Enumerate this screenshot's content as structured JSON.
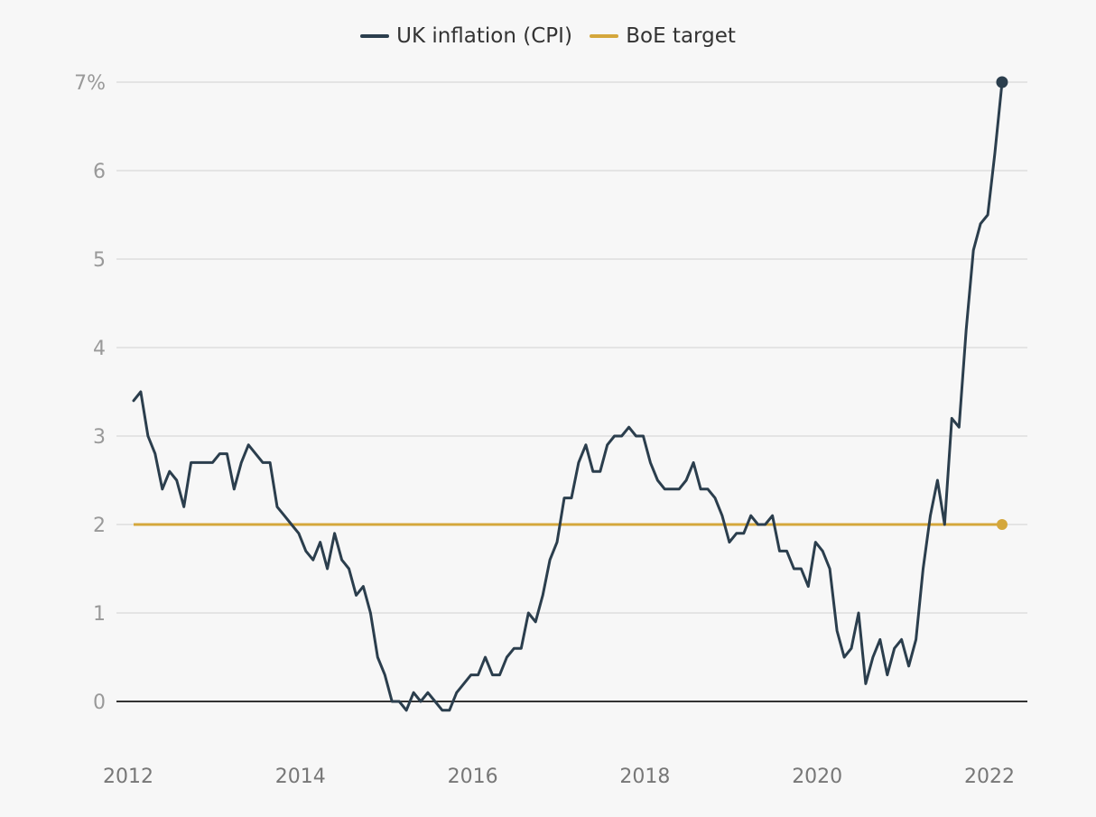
{
  "chart_data": {
    "type": "line",
    "title": "",
    "xlabel": "",
    "ylabel": "",
    "ylim": [
      0,
      7
    ],
    "y_ticks": [
      "0",
      "1",
      "2",
      "3",
      "4",
      "5",
      "6",
      "7%"
    ],
    "x_ticks": [
      "2012",
      "2014",
      "2016",
      "2018",
      "2020",
      "2022"
    ],
    "x_start": "2012-01",
    "x_end": "2022-03",
    "grid": true,
    "legend_position": "top-center",
    "series": [
      {
        "name": "UK inflation (CPI)",
        "color": "#2b3e4d",
        "values": [
          3.4,
          3.5,
          3.0,
          2.8,
          2.4,
          2.6,
          2.5,
          2.2,
          2.7,
          2.7,
          2.7,
          2.7,
          2.8,
          2.8,
          2.4,
          2.7,
          2.9,
          2.8,
          2.7,
          2.7,
          2.2,
          2.1,
          2.0,
          1.9,
          1.7,
          1.6,
          1.8,
          1.5,
          1.9,
          1.6,
          1.5,
          1.2,
          1.3,
          1.0,
          0.5,
          0.3,
          0.0,
          0.0,
          -0.1,
          0.1,
          0.0,
          0.1,
          0.0,
          -0.1,
          -0.1,
          0.1,
          0.2,
          0.3,
          0.3,
          0.5,
          0.3,
          0.3,
          0.5,
          0.6,
          0.6,
          1.0,
          0.9,
          1.2,
          1.6,
          1.8,
          2.3,
          2.3,
          2.7,
          2.9,
          2.6,
          2.6,
          2.9,
          3.0,
          3.0,
          3.1,
          3.0,
          3.0,
          2.7,
          2.5,
          2.4,
          2.4,
          2.4,
          2.5,
          2.7,
          2.4,
          2.4,
          2.3,
          2.1,
          1.8,
          1.9,
          1.9,
          2.1,
          2.0,
          2.0,
          2.1,
          1.7,
          1.7,
          1.5,
          1.5,
          1.3,
          1.8,
          1.7,
          1.5,
          0.8,
          0.5,
          0.6,
          1.0,
          0.2,
          0.5,
          0.7,
          0.3,
          0.6,
          0.7,
          0.4,
          0.7,
          1.5,
          2.1,
          2.5,
          2.0,
          3.2,
          3.1,
          4.2,
          5.1,
          5.4,
          5.5,
          6.2,
          7.0
        ],
        "end_marker": true
      },
      {
        "name": "BoE target",
        "color": "#d4a73c",
        "values": [
          2.0,
          2.0
        ],
        "end_marker": true
      }
    ]
  }
}
